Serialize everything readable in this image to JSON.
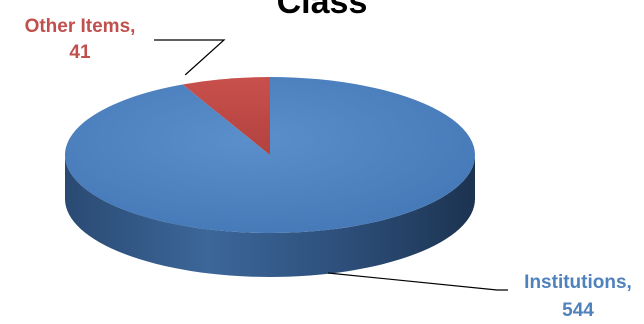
{
  "chart_data": {
    "type": "pie",
    "variant": "3d",
    "title": "Class",
    "slices": [
      {
        "label": "Institutions",
        "value": 544,
        "color": "#4f81bd",
        "label_text": [
          "Institutions,",
          "544"
        ],
        "label_color": "#4f81bd"
      },
      {
        "label": "Other Items",
        "value": 41,
        "color": "#c0504d",
        "label_text": [
          "Other Items,",
          "41"
        ],
        "label_color": "#c0504d"
      }
    ],
    "legend": "none",
    "data_labels": true
  }
}
